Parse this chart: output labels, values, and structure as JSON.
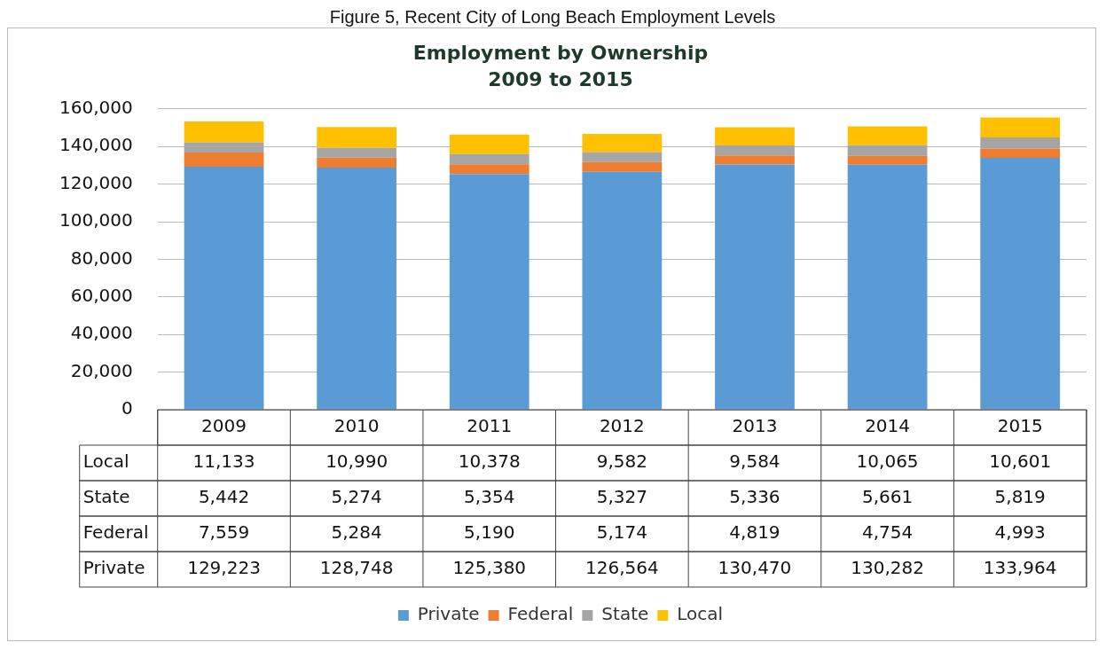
{
  "chart_data": {
    "type": "bar",
    "title": "Employment by Ownership",
    "subtitle": "2009 to 2015",
    "annotations": [
      "Figure 5, Recent City of Long Beach Employment Levels"
    ],
    "categories": [
      "2009",
      "2010",
      "2011",
      "2012",
      "2013",
      "2014",
      "2015"
    ],
    "stacked": true,
    "ylim": [
      0,
      160000
    ],
    "yticks": [
      0,
      {
        "value": 20000,
        "label": "20,000"
      },
      {
        "value": 40000,
        "label": "40,000"
      },
      {
        "value": 60000,
        "label": "60,000"
      },
      {
        "value": 80000,
        "label": "80,000"
      },
      {
        "value": 100000,
        "label": "100,000"
      },
      {
        "value": 120000,
        "label": "120,000"
      },
      {
        "value": 140000,
        "label": "140,000"
      },
      {
        "value": 160000,
        "label": "160,000"
      }
    ],
    "grid": "y",
    "legend": "bottom",
    "series": [
      {
        "name": "Private",
        "color": "#5b9bd5",
        "values": [
          129223,
          128748,
          125380,
          126564,
          130470,
          130282,
          133964
        ],
        "value_labels": [
          "129,223",
          "128,748",
          "125,380",
          "126,564",
          "130,470",
          "130,282",
          "133,964"
        ]
      },
      {
        "name": "Federal",
        "color": "#ed7d31",
        "values": [
          7559,
          5284,
          5190,
          5174,
          4819,
          4754,
          4993
        ],
        "value_labels": [
          "7,559",
          "5,284",
          "5,190",
          "5,174",
          "4,819",
          "4,754",
          "4,993"
        ]
      },
      {
        "name": "State",
        "color": "#a5a5a5",
        "values": [
          5442,
          5274,
          5354,
          5327,
          5336,
          5661,
          5819
        ],
        "value_labels": [
          "5,442",
          "5,274",
          "5,354",
          "5,327",
          "5,336",
          "5,661",
          "5,819"
        ]
      },
      {
        "name": "Local",
        "color": "#ffc000",
        "values": [
          11133,
          10990,
          10378,
          9582,
          9584,
          10065,
          10601
        ],
        "value_labels": [
          "11,133",
          "10,990",
          "10,378",
          "9,582",
          "9,584",
          "10,065",
          "10,601"
        ]
      }
    ]
  }
}
